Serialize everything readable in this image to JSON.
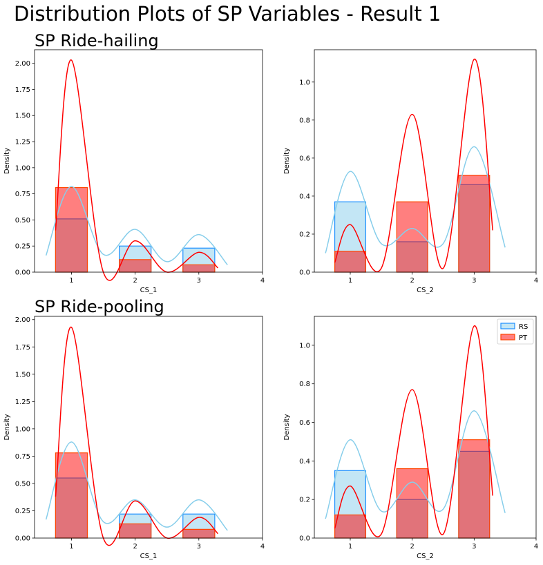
{
  "figure": {
    "suptitle": "Distribution Plots of SP Variables - Result 1",
    "row_titles": [
      "SP Ride-hailing",
      "SP Ride-pooling"
    ]
  },
  "colors": {
    "rs_fill": "#87ceeb",
    "rs_edge": "#1e90ff",
    "rs_kde": "#87ceeb",
    "pt_fill": "#ff0000",
    "pt_edge": "#ff4500",
    "pt_kde": "#ff0000"
  },
  "chart_data": [
    {
      "type": "bar",
      "row_title": "SP Ride-hailing",
      "xlabel": "CS_1",
      "ylabel": "Density",
      "xlim": [
        0.42,
        4.0
      ],
      "ylim": [
        0,
        2.13
      ],
      "xticks": [
        1,
        2,
        3,
        4
      ],
      "yticks": [
        0,
        0.25,
        0.5,
        0.75,
        1.0,
        1.25,
        1.5,
        1.75,
        2.0
      ],
      "ytick_labels": [
        "0.00",
        "0.25",
        "0.50",
        "0.75",
        "1.00",
        "1.25",
        "1.50",
        "1.75",
        "2.00"
      ],
      "categories": [
        1,
        2,
        3
      ],
      "series": [
        {
          "name": "RS",
          "values": [
            0.51,
            0.25,
            0.23
          ],
          "kde": {
            "x": [
              0.6,
              1.0,
              1.5,
              2.0,
              2.5,
              3.0,
              3.45
            ],
            "y": [
              0.16,
              0.82,
              0.17,
              0.41,
              0.1,
              0.36,
              0.07
            ]
          }
        },
        {
          "name": "PT",
          "values": [
            0.81,
            0.12,
            0.07
          ],
          "kde": {
            "x": [
              0.75,
              1.0,
              1.5,
              2.0,
              2.5,
              3.0,
              3.3
            ],
            "y": [
              0.4,
              2.03,
              0.0,
              0.3,
              0.0,
              0.19,
              0.04
            ]
          }
        }
      ]
    },
    {
      "type": "bar",
      "row_title": "",
      "xlabel": "CS_2",
      "ylabel": "Density",
      "xlim": [
        0.42,
        4.0
      ],
      "ylim": [
        0,
        1.17
      ],
      "xticks": [
        1,
        2,
        3,
        4
      ],
      "yticks": [
        0,
        0.2,
        0.4,
        0.6,
        0.8,
        1.0
      ],
      "ytick_labels": [
        "0.0",
        "0.2",
        "0.4",
        "0.6",
        "0.8",
        "1.0"
      ],
      "categories": [
        1,
        2,
        3
      ],
      "series": [
        {
          "name": "RS",
          "values": [
            0.37,
            0.16,
            0.46
          ],
          "kde": {
            "x": [
              0.6,
              1.0,
              1.5,
              2.0,
              2.5,
              3.0,
              3.5
            ],
            "y": [
              0.1,
              0.53,
              0.15,
              0.23,
              0.15,
              0.66,
              0.13
            ]
          }
        },
        {
          "name": "PT",
          "values": [
            0.11,
            0.37,
            0.51
          ],
          "kde": {
            "x": [
              0.75,
              1.0,
              1.5,
              2.0,
              2.5,
              3.0,
              3.3
            ],
            "y": [
              0.05,
              0.25,
              0.02,
              0.83,
              0.02,
              1.12,
              0.22
            ]
          }
        }
      ]
    },
    {
      "type": "bar",
      "row_title": "",
      "xlabel": "CS_1",
      "ylabel": "Density",
      "xlim": [
        0.42,
        4.0
      ],
      "ylim": [
        0,
        2.03
      ],
      "xticks": [
        1,
        2,
        3,
        4
      ],
      "yticks": [
        0,
        0.25,
        0.5,
        0.75,
        1.0,
        1.25,
        1.5,
        1.75,
        2.0
      ],
      "ytick_labels": [
        "0.00",
        "0.25",
        "0.50",
        "0.75",
        "1.00",
        "1.25",
        "1.50",
        "1.75",
        "2.00"
      ],
      "categories": [
        1,
        2,
        3
      ],
      "series": [
        {
          "name": "RS",
          "values": [
            0.55,
            0.22,
            0.22
          ],
          "kde": {
            "x": [
              0.6,
              1.0,
              1.5,
              2.0,
              2.5,
              3.0,
              3.45
            ],
            "y": [
              0.17,
              0.88,
              0.15,
              0.35,
              0.1,
              0.35,
              0.07
            ]
          }
        },
        {
          "name": "PT",
          "values": [
            0.78,
            0.13,
            0.08
          ],
          "kde": {
            "x": [
              0.75,
              1.0,
              1.5,
              2.0,
              2.5,
              3.0,
              3.3
            ],
            "y": [
              0.38,
              1.93,
              0.0,
              0.34,
              0.0,
              0.19,
              0.04
            ]
          }
        }
      ]
    },
    {
      "type": "bar",
      "row_title": "",
      "xlabel": "CS_2",
      "ylabel": "Density",
      "xlim": [
        0.42,
        4.0
      ],
      "ylim": [
        0,
        1.15
      ],
      "xticks": [
        1,
        2,
        3,
        4
      ],
      "yticks": [
        0,
        0.2,
        0.4,
        0.6,
        0.8,
        1.0
      ],
      "ytick_labels": [
        "0.0",
        "0.2",
        "0.4",
        "0.6",
        "0.8",
        "1.0"
      ],
      "categories": [
        1,
        2,
        3
      ],
      "legend": {
        "position": "top-right",
        "entries": [
          "RS",
          "PT"
        ]
      },
      "series": [
        {
          "name": "RS",
          "values": [
            0.35,
            0.2,
            0.45
          ],
          "kde": {
            "x": [
              0.6,
              1.0,
              1.5,
              2.0,
              2.5,
              3.0,
              3.5
            ],
            "y": [
              0.1,
              0.51,
              0.14,
              0.29,
              0.15,
              0.66,
              0.13
            ]
          }
        },
        {
          "name": "PT",
          "values": [
            0.12,
            0.36,
            0.51
          ],
          "kde": {
            "x": [
              0.75,
              1.0,
              1.5,
              2.0,
              2.5,
              3.0,
              3.3
            ],
            "y": [
              0.05,
              0.27,
              0.02,
              0.77,
              0.02,
              1.1,
              0.22
            ]
          }
        }
      ]
    }
  ]
}
